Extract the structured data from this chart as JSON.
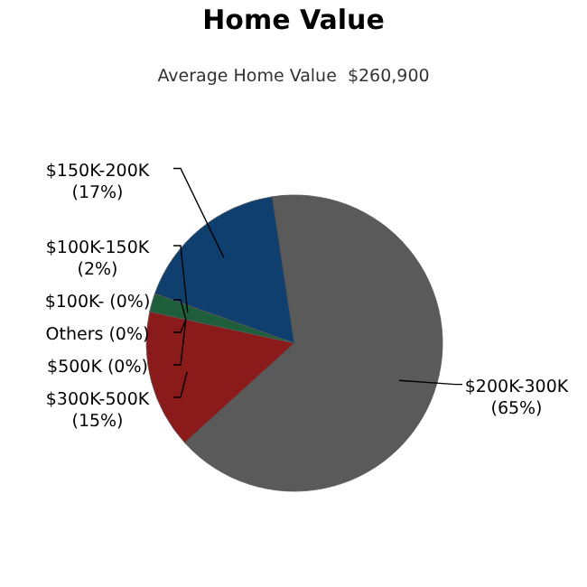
{
  "chart_data": {
    "type": "pie",
    "title": "Home Value",
    "subtitle": "Average Home Value  $260,900",
    "categories": [
      "$200K-300K",
      "$300K-500K",
      "$500K",
      "Others",
      "$100K-",
      "$100K-150K",
      "$150K-200K"
    ],
    "values": [
      65,
      15,
      0,
      0,
      0,
      2,
      17
    ],
    "colors": [
      "#5a5a5a",
      "#8b1a1a",
      "#b8860b",
      "#7a7a7a",
      "#4a2a6a",
      "#1e5e3a",
      "#0e3f6e"
    ],
    "value_labels": [
      "(65%)",
      "(15%)",
      "(0%)",
      "(0%)",
      "(0%)",
      "(2%)",
      "(17%)"
    ],
    "data_labels": true
  }
}
